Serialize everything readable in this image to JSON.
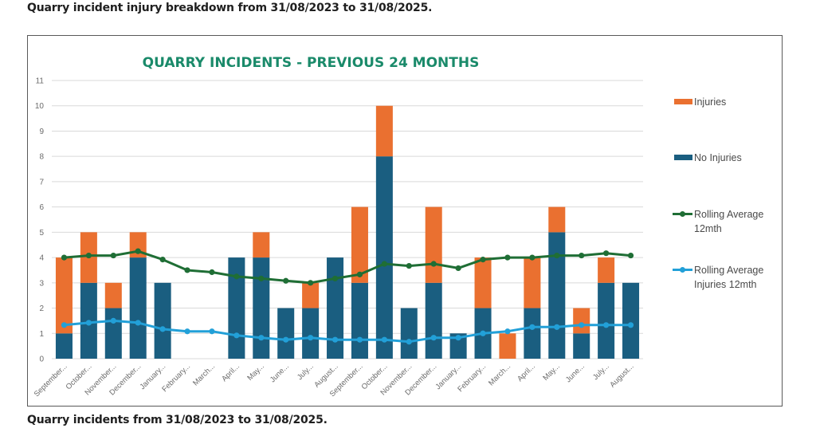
{
  "captions": {
    "top": "Quarry incident injury breakdown from 31/08/2023 to 31/08/2025.",
    "bottom": "Quarry incidents from 31/08/2023 to 31/08/2025."
  },
  "chart_data": {
    "type": "bar",
    "stacked": true,
    "title": "QUARRY INCIDENTS - PREVIOUS 24 MONTHS",
    "xlabel": "",
    "ylabel": "",
    "ylim": [
      0,
      11
    ],
    "yticks": [
      0,
      1,
      2,
      3,
      4,
      5,
      6,
      7,
      8,
      9,
      10,
      11
    ],
    "grid": true,
    "legend_position": "right",
    "categories": [
      "September...",
      "October...",
      "November...",
      "December...",
      "January...",
      "February...",
      "March...",
      "April...",
      "May...",
      "June...",
      "July...",
      "August...",
      "September...",
      "October...",
      "November...",
      "December...",
      "January...",
      "February...",
      "March...",
      "April...",
      "May...",
      "June...",
      "July...",
      "August..."
    ],
    "series": [
      {
        "name": "No Injuries",
        "kind": "bar",
        "color": "#1a5e80",
        "values": [
          1,
          3,
          2,
          4,
          3,
          0,
          0,
          4,
          4,
          2,
          2,
          4,
          3,
          8,
          2,
          3,
          1,
          2,
          0,
          2,
          5,
          1,
          3,
          3
        ]
      },
      {
        "name": "Injuries",
        "kind": "bar",
        "color": "#ea7030",
        "values": [
          3,
          2,
          1,
          1,
          0,
          0,
          0,
          0,
          1,
          0,
          1,
          0,
          3,
          2,
          0,
          3,
          0,
          2,
          1,
          2,
          1,
          1,
          1,
          0
        ]
      },
      {
        "name": "Rolling Average 12mth",
        "kind": "line",
        "color": "#1f6e35",
        "values": [
          4.0,
          4.08,
          4.08,
          4.25,
          3.92,
          3.5,
          3.42,
          3.25,
          3.17,
          3.08,
          3.0,
          3.17,
          3.33,
          3.75,
          3.67,
          3.75,
          3.58,
          3.92,
          4.0,
          4.0,
          4.08,
          4.08,
          4.17,
          4.08
        ]
      },
      {
        "name": "Rolling Average Injuries 12mth",
        "kind": "line",
        "color": "#22a0d8",
        "values": [
          1.33,
          1.42,
          1.5,
          1.42,
          1.17,
          1.08,
          1.08,
          0.92,
          0.83,
          0.75,
          0.83,
          0.75,
          0.75,
          0.75,
          0.67,
          0.83,
          0.83,
          1.0,
          1.08,
          1.25,
          1.25,
          1.33,
          1.33,
          1.33
        ]
      }
    ],
    "legend": [
      {
        "label": "Injuries",
        "kind": "bar",
        "color": "#ea7030"
      },
      {
        "label": "No Injuries",
        "kind": "bar",
        "color": "#1a5e80"
      },
      {
        "label": "Rolling Average 12mth",
        "label_lines": [
          "Rolling Average",
          "12mth"
        ],
        "kind": "line",
        "color": "#1f6e35"
      },
      {
        "label": "Rolling Average Injuries 12mth",
        "label_lines": [
          "Rolling Average",
          "Injuries 12mth"
        ],
        "kind": "line",
        "color": "#22a0d8"
      }
    ],
    "colors": {
      "title": "#1a8a6a",
      "grid": "#d9d9d9"
    }
  }
}
